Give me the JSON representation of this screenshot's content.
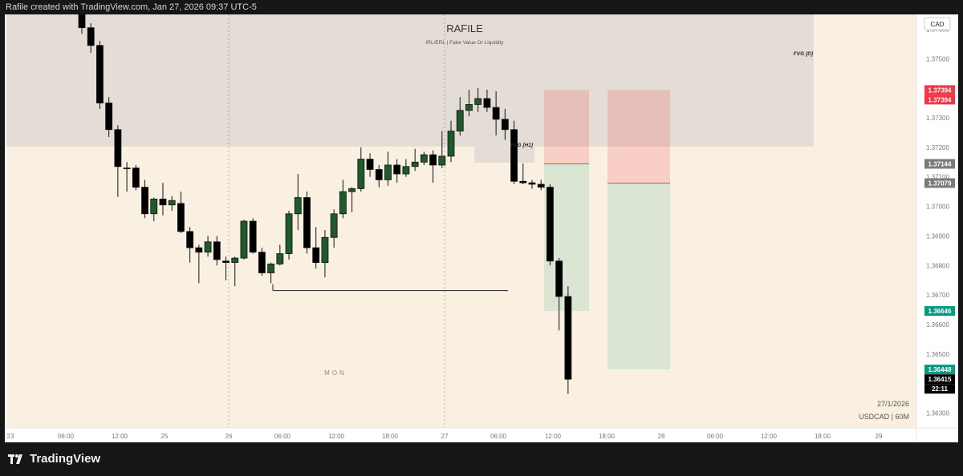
{
  "header": {
    "attribution": "Rafile created with TradingView.com, Jan 27, 2026 09:37 UTC-5"
  },
  "footer": {
    "brand": "TradingView",
    "logo_icon": "tradingview-logo-icon"
  },
  "chart_data": {
    "type": "candlestick",
    "title": "RAFILE",
    "subtitle": "IRL/ERL | Faire Value Or Liquidity",
    "currency": "CAD",
    "symbol_label": "USDCAD | 60M",
    "date_label": "27/1/2026",
    "session_label": "MON",
    "x_tick_labels": [
      "23",
      "06:00",
      "12:00",
      "25",
      "26",
      "06:00",
      "12:00",
      "18:00",
      "27",
      "06:00",
      "12:00",
      "18:00",
      "28",
      "06:00",
      "12:00",
      "18:00",
      "29"
    ],
    "y_tick_labels": [
      "1.37600",
      "1.37500",
      "1.37400",
      "1.37300",
      "1.37200",
      "1.37100",
      "1.37000",
      "1.36900",
      "1.36800",
      "1.36700",
      "1.36600",
      "1.36500",
      "1.36300"
    ],
    "ylim": [
      1.3625,
      1.3765
    ],
    "price_tags": [
      {
        "label": "1.37394",
        "value": 1.37394,
        "color": "#f23645"
      },
      {
        "label": "1.37394",
        "value": 1.37394,
        "color": "#f23645"
      },
      {
        "label": "1.37144",
        "value": 1.37144,
        "color": "#7b7b7b"
      },
      {
        "label": "1.37079",
        "value": 1.37079,
        "color": "#7b7b7b"
      },
      {
        "label": "1.36646",
        "value": 1.36646,
        "color": "#089981"
      },
      {
        "label": "1.36448",
        "value": 1.36448,
        "color": "#089981"
      },
      {
        "label": "1.36415",
        "value": 1.36415,
        "color": "#000000"
      },
      {
        "label": "22:11",
        "value": 1.36385,
        "color": "#000000"
      }
    ],
    "annotations": [
      {
        "text": "FVG [D]",
        "y": 1.3752
      },
      {
        "text": "FVG [H1]",
        "y": 1.3721
      }
    ],
    "zones": [
      {
        "name": "fvg-daily",
        "y_top": 1.3765,
        "y_bottom": 1.37203
      },
      {
        "name": "fvg-h1",
        "y_top": 1.37266,
        "y_bottom": 1.37148
      }
    ],
    "positions": [
      {
        "name": "position-1",
        "stop": 1.37394,
        "entry": 1.37144,
        "target": 1.36646
      },
      {
        "name": "position-2",
        "stop": 1.37394,
        "entry": 1.37079,
        "target": 1.36448
      }
    ],
    "liquidity_level": 1.36715,
    "colors": {
      "bullish": "#1e5a2a",
      "bearish": "#000000",
      "background": "#faf0e1",
      "zone": "#e3ddd5",
      "stop_zone": "rgba(242,54,69,0.18)",
      "target_zone": "rgba(8,153,129,0.13)"
    },
    "candles": [
      {
        "o": 1.37678,
        "h": 1.37735,
        "l": 1.37585,
        "c": 1.37605
      },
      {
        "o": 1.37605,
        "h": 1.3762,
        "l": 1.3752,
        "c": 1.37545
      },
      {
        "o": 1.37545,
        "h": 1.3756,
        "l": 1.3733,
        "c": 1.3735
      },
      {
        "o": 1.3735,
        "h": 1.3737,
        "l": 1.37235,
        "c": 1.3726
      },
      {
        "o": 1.3726,
        "h": 1.37275,
        "l": 1.37032,
        "c": 1.37135
      },
      {
        "o": 1.3713,
        "h": 1.3715,
        "l": 1.3705,
        "c": 1.3713
      },
      {
        "o": 1.3713,
        "h": 1.3714,
        "l": 1.37055,
        "c": 1.37065
      },
      {
        "o": 1.37065,
        "h": 1.3709,
        "l": 1.3696,
        "c": 1.36975
      },
      {
        "o": 1.36975,
        "h": 1.3703,
        "l": 1.3695,
        "c": 1.37025
      },
      {
        "o": 1.37025,
        "h": 1.3708,
        "l": 1.3697,
        "c": 1.37005
      },
      {
        "o": 1.37005,
        "h": 1.37035,
        "l": 1.36985,
        "c": 1.3702
      },
      {
        "o": 1.3701,
        "h": 1.3705,
        "l": 1.3691,
        "c": 1.36915
      },
      {
        "o": 1.36915,
        "h": 1.3693,
        "l": 1.3681,
        "c": 1.3686
      },
      {
        "o": 1.3686,
        "h": 1.3687,
        "l": 1.3674,
        "c": 1.36845
      },
      {
        "o": 1.36845,
        "h": 1.369,
        "l": 1.3683,
        "c": 1.3688
      },
      {
        "o": 1.3688,
        "h": 1.369,
        "l": 1.368,
        "c": 1.3682
      },
      {
        "o": 1.36815,
        "h": 1.3683,
        "l": 1.3675,
        "c": 1.3681
      },
      {
        "o": 1.3681,
        "h": 1.3683,
        "l": 1.3673,
        "c": 1.36825
      },
      {
        "o": 1.36825,
        "h": 1.36955,
        "l": 1.3682,
        "c": 1.3695
      },
      {
        "o": 1.3695,
        "h": 1.3696,
        "l": 1.3684,
        "c": 1.36845
      },
      {
        "o": 1.36845,
        "h": 1.3686,
        "l": 1.36765,
        "c": 1.36775
      },
      {
        "o": 1.36775,
        "h": 1.3681,
        "l": 1.3674,
        "c": 1.36805
      },
      {
        "o": 1.36805,
        "h": 1.3687,
        "l": 1.368,
        "c": 1.3684
      },
      {
        "o": 1.3684,
        "h": 1.36985,
        "l": 1.3682,
        "c": 1.36975
      },
      {
        "o": 1.36975,
        "h": 1.3711,
        "l": 1.3692,
        "c": 1.3703
      },
      {
        "o": 1.3703,
        "h": 1.3705,
        "l": 1.3684,
        "c": 1.3686
      },
      {
        "o": 1.3686,
        "h": 1.3693,
        "l": 1.3679,
        "c": 1.3681
      },
      {
        "o": 1.3681,
        "h": 1.3692,
        "l": 1.3676,
        "c": 1.36895
      },
      {
        "o": 1.36895,
        "h": 1.3699,
        "l": 1.3686,
        "c": 1.36975
      },
      {
        "o": 1.36975,
        "h": 1.3709,
        "l": 1.3696,
        "c": 1.3705
      },
      {
        "o": 1.3705,
        "h": 1.37065,
        "l": 1.3698,
        "c": 1.3706
      },
      {
        "o": 1.3706,
        "h": 1.372,
        "l": 1.3705,
        "c": 1.3716
      },
      {
        "o": 1.3716,
        "h": 1.3718,
        "l": 1.371,
        "c": 1.37125
      },
      {
        "o": 1.37125,
        "h": 1.3714,
        "l": 1.37065,
        "c": 1.3709
      },
      {
        "o": 1.3709,
        "h": 1.37185,
        "l": 1.3707,
        "c": 1.3714
      },
      {
        "o": 1.3714,
        "h": 1.3716,
        "l": 1.3708,
        "c": 1.3711
      },
      {
        "o": 1.3711,
        "h": 1.3716,
        "l": 1.371,
        "c": 1.37135
      },
      {
        "o": 1.37135,
        "h": 1.37195,
        "l": 1.3712,
        "c": 1.3715
      },
      {
        "o": 1.3715,
        "h": 1.37185,
        "l": 1.3714,
        "c": 1.37175
      },
      {
        "o": 1.37175,
        "h": 1.3719,
        "l": 1.3708,
        "c": 1.3714
      },
      {
        "o": 1.3714,
        "h": 1.37255,
        "l": 1.3713,
        "c": 1.3717
      },
      {
        "o": 1.3717,
        "h": 1.3729,
        "l": 1.3715,
        "c": 1.37255
      },
      {
        "o": 1.37255,
        "h": 1.3737,
        "l": 1.3724,
        "c": 1.37325
      },
      {
        "o": 1.37325,
        "h": 1.37395,
        "l": 1.37305,
        "c": 1.37345
      },
      {
        "o": 1.37345,
        "h": 1.374,
        "l": 1.3732,
        "c": 1.37365
      },
      {
        "o": 1.37365,
        "h": 1.37395,
        "l": 1.3732,
        "c": 1.37335
      },
      {
        "o": 1.37335,
        "h": 1.3739,
        "l": 1.3724,
        "c": 1.37295
      },
      {
        "o": 1.37295,
        "h": 1.3733,
        "l": 1.37225,
        "c": 1.3726
      },
      {
        "o": 1.3726,
        "h": 1.3729,
        "l": 1.37075,
        "c": 1.37085
      },
      {
        "o": 1.37085,
        "h": 1.37145,
        "l": 1.37075,
        "c": 1.3708
      },
      {
        "o": 1.3708,
        "h": 1.3709,
        "l": 1.3706,
        "c": 1.37075
      },
      {
        "o": 1.37075,
        "h": 1.3709,
        "l": 1.37055,
        "c": 1.37065
      },
      {
        "o": 1.37065,
        "h": 1.37075,
        "l": 1.368,
        "c": 1.36815
      },
      {
        "o": 1.36815,
        "h": 1.36825,
        "l": 1.3658,
        "c": 1.36695
      },
      {
        "o": 1.36695,
        "h": 1.3673,
        "l": 1.36365,
        "c": 1.36415
      }
    ]
  }
}
